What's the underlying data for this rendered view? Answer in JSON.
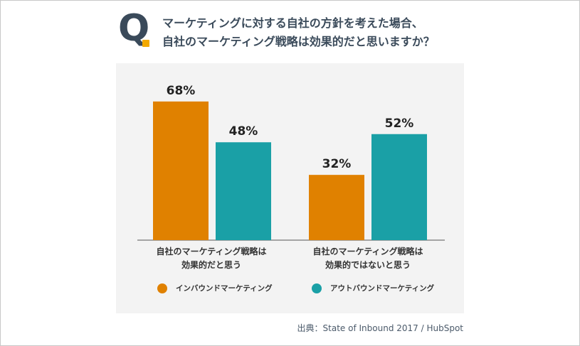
{
  "question": {
    "mark": "Q",
    "line1": "マーケティングに対する自社の方針を考えた場合、",
    "line2": "自社のマーケティング戦略は効果的だと思いますか？"
  },
  "chart_data": {
    "type": "bar",
    "categories": [
      [
        "自社のマーケティング戦略は",
        "効果的だと思う"
      ],
      [
        "自社のマーケティング戦略は",
        "効果的ではないと思う"
      ]
    ],
    "series": [
      {
        "name": "インバウンドマーケティング",
        "color": "#e08100",
        "values": [
          68,
          32
        ]
      },
      {
        "name": "アウトバウンドマーケティング",
        "color": "#1aa0a6",
        "values": [
          48,
          52
        ]
      }
    ],
    "value_suffix": "%",
    "ylim": [
      0,
      100
    ],
    "legend_position": "bottom"
  },
  "source": "出典：State of Inbound 2017 / HubSpot"
}
